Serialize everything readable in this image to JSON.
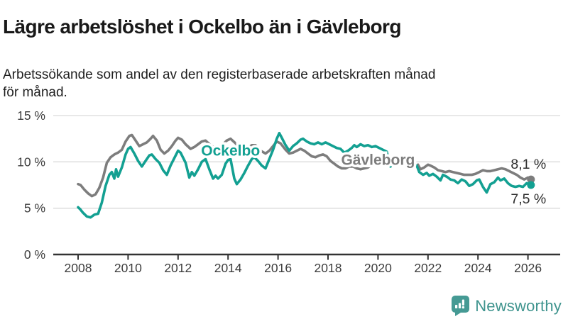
{
  "header": {
    "title": "Lägre arbetslöshet i Ockelbo än i Gävleborg",
    "subtitle": "Arbetssökande som andel av den registerbaserade arbetskraften månad\nför månad."
  },
  "footer": {
    "brand": "Newsworthy",
    "brand_color": "#3f948e",
    "logo_icon": "bar-chart-speech-bubble",
    "logo_icon_color": "#459a94"
  },
  "chart_data": {
    "type": "line",
    "title": "Lägre arbetslöshet i Ockelbo än i Gävleborg",
    "subtitle": "Arbetssökande som andel av den registerbaserade arbetskraften månad för månad.",
    "xlabel": "",
    "ylabel": "",
    "y_unit": "percent",
    "x_unit": "year, monthly points",
    "ylim": [
      0,
      15
    ],
    "xlim": [
      2007.9,
      2026.9
    ],
    "grid": "horizontal",
    "gridline_color": "#dadada",
    "axis_color": "#333333",
    "tick_label_color": "#3d3d3d",
    "data_gap_note": "no data plotted between mid-2020 and mid-2021",
    "y_ticks": [
      {
        "value": 0,
        "label": "0 %"
      },
      {
        "value": 5,
        "label": "5 %"
      },
      {
        "value": 10,
        "label": "10 %"
      },
      {
        "value": 15,
        "label": "15 %"
      }
    ],
    "x_ticks": [
      {
        "value": 2008,
        "label": "2008"
      },
      {
        "value": 2010,
        "label": "2010"
      },
      {
        "value": 2012,
        "label": "2012"
      },
      {
        "value": 2014,
        "label": "2014"
      },
      {
        "value": 2016,
        "label": "2016"
      },
      {
        "value": 2018,
        "label": "2018"
      },
      {
        "value": 2020,
        "label": "2020"
      },
      {
        "value": 2022,
        "label": "2022"
      },
      {
        "value": 2024,
        "label": "2024"
      },
      {
        "value": 2026,
        "label": "2026"
      }
    ],
    "series": [
      {
        "name": "Gävleborg",
        "color": "#7d7d7d",
        "end_value_label": "8,1 %",
        "end_value": 8.1,
        "segments": [
          [
            [
              2008.0,
              7.6
            ],
            [
              2008.1,
              7.5
            ],
            [
              2008.25,
              7.0
            ],
            [
              2008.4,
              6.6
            ],
            [
              2008.55,
              6.3
            ],
            [
              2008.7,
              6.5
            ],
            [
              2008.85,
              7.2
            ],
            [
              2009.0,
              8.3
            ],
            [
              2009.15,
              9.9
            ],
            [
              2009.3,
              10.5
            ],
            [
              2009.45,
              10.8
            ],
            [
              2009.6,
              11.0
            ],
            [
              2009.75,
              11.3
            ],
            [
              2009.9,
              12.2
            ],
            [
              2010.05,
              12.8
            ],
            [
              2010.15,
              12.9
            ],
            [
              2010.3,
              12.3
            ],
            [
              2010.45,
              11.7
            ],
            [
              2010.6,
              11.9
            ],
            [
              2010.75,
              12.1
            ],
            [
              2010.9,
              12.5
            ],
            [
              2011.0,
              12.8
            ],
            [
              2011.15,
              12.3
            ],
            [
              2011.3,
              11.3
            ],
            [
              2011.45,
              10.9
            ],
            [
              2011.6,
              11.2
            ],
            [
              2011.75,
              11.7
            ],
            [
              2011.9,
              12.3
            ],
            [
              2012.0,
              12.6
            ],
            [
              2012.15,
              12.4
            ],
            [
              2012.3,
              11.9
            ],
            [
              2012.5,
              11.4
            ],
            [
              2012.65,
              11.6
            ],
            [
              2012.8,
              11.9
            ],
            [
              2012.95,
              12.2
            ],
            [
              2013.1,
              12.3
            ],
            [
              2013.3,
              11.8
            ],
            [
              2013.5,
              11.4
            ],
            [
              2013.65,
              11.6
            ],
            [
              2013.8,
              11.9
            ],
            [
              2013.95,
              12.3
            ],
            [
              2014.1,
              12.5
            ],
            [
              2014.3,
              12.0
            ],
            [
              2014.5,
              11.4
            ],
            [
              2014.65,
              11.2
            ],
            [
              2014.8,
              11.5
            ],
            [
              2014.95,
              11.8
            ],
            [
              2015.1,
              11.8
            ],
            [
              2015.3,
              11.2
            ],
            [
              2015.5,
              10.9
            ],
            [
              2015.65,
              11.2
            ],
            [
              2015.8,
              11.7
            ],
            [
              2015.95,
              12.2
            ],
            [
              2016.1,
              12.0
            ],
            [
              2016.3,
              11.3
            ],
            [
              2016.45,
              10.9
            ],
            [
              2016.6,
              11.0
            ],
            [
              2016.75,
              11.2
            ],
            [
              2016.9,
              11.4
            ],
            [
              2017.05,
              11.2
            ],
            [
              2017.2,
              10.9
            ],
            [
              2017.35,
              10.6
            ],
            [
              2017.5,
              10.5
            ],
            [
              2017.65,
              10.7
            ],
            [
              2017.8,
              10.8
            ],
            [
              2017.95,
              10.6
            ],
            [
              2018.1,
              10.1
            ],
            [
              2018.25,
              9.8
            ],
            [
              2018.4,
              9.5
            ],
            [
              2018.55,
              9.3
            ],
            [
              2018.7,
              9.3
            ],
            [
              2018.85,
              9.5
            ],
            [
              2019.0,
              9.5
            ],
            [
              2019.15,
              9.3
            ],
            [
              2019.3,
              9.2
            ],
            [
              2019.45,
              9.3
            ],
            [
              2019.6,
              9.4
            ],
            [
              2019.75,
              9.7
            ],
            [
              2019.9,
              9.8
            ],
            [
              2020.05,
              9.8
            ],
            [
              2020.2,
              10.0
            ],
            [
              2020.45,
              10.3
            ]
          ],
          [
            [
              2021.6,
              9.7
            ],
            [
              2021.7,
              9.2
            ],
            [
              2021.85,
              9.4
            ],
            [
              2022.0,
              9.7
            ],
            [
              2022.1,
              9.6
            ],
            [
              2022.25,
              9.4
            ],
            [
              2022.4,
              9.1
            ],
            [
              2022.55,
              9.0
            ],
            [
              2022.7,
              8.9
            ],
            [
              2022.85,
              9.0
            ],
            [
              2023.0,
              8.9
            ],
            [
              2023.15,
              8.8
            ],
            [
              2023.3,
              8.7
            ],
            [
              2023.45,
              8.6
            ],
            [
              2023.6,
              8.6
            ],
            [
              2023.75,
              8.6
            ],
            [
              2023.9,
              8.7
            ],
            [
              2024.05,
              8.9
            ],
            [
              2024.2,
              9.1
            ],
            [
              2024.35,
              9.0
            ],
            [
              2024.5,
              9.0
            ],
            [
              2024.65,
              9.1
            ],
            [
              2024.8,
              9.2
            ],
            [
              2024.95,
              9.3
            ],
            [
              2025.1,
              9.2
            ],
            [
              2025.25,
              9.0
            ],
            [
              2025.4,
              8.8
            ],
            [
              2025.55,
              8.6
            ],
            [
              2025.7,
              8.3
            ],
            [
              2025.85,
              8.1
            ],
            [
              2026.0,
              8.3
            ],
            [
              2026.12,
              8.1
            ]
          ]
        ]
      },
      {
        "name": "Ockelbo",
        "color": "#13a092",
        "end_value_label": "7,5 %",
        "end_value": 7.5,
        "segments": [
          [
            [
              2008.0,
              5.1
            ],
            [
              2008.08,
              4.9
            ],
            [
              2008.2,
              4.5
            ],
            [
              2008.35,
              4.1
            ],
            [
              2008.5,
              4.0
            ],
            [
              2008.65,
              4.3
            ],
            [
              2008.8,
              4.4
            ],
            [
              2008.95,
              5.6
            ],
            [
              2009.1,
              7.4
            ],
            [
              2009.25,
              8.6
            ],
            [
              2009.35,
              8.9
            ],
            [
              2009.45,
              8.2
            ],
            [
              2009.52,
              9.2
            ],
            [
              2009.6,
              8.4
            ],
            [
              2009.75,
              9.4
            ],
            [
              2009.9,
              10.8
            ],
            [
              2010.0,
              11.4
            ],
            [
              2010.1,
              11.6
            ],
            [
              2010.25,
              10.9
            ],
            [
              2010.4,
              10.1
            ],
            [
              2010.55,
              9.5
            ],
            [
              2010.7,
              10.1
            ],
            [
              2010.85,
              10.7
            ],
            [
              2010.95,
              10.8
            ],
            [
              2011.1,
              10.3
            ],
            [
              2011.25,
              9.9
            ],
            [
              2011.4,
              9.1
            ],
            [
              2011.55,
              8.6
            ],
            [
              2011.7,
              9.6
            ],
            [
              2011.85,
              10.4
            ],
            [
              2012.0,
              11.2
            ],
            [
              2012.1,
              11.0
            ],
            [
              2012.3,
              9.9
            ],
            [
              2012.45,
              8.3
            ],
            [
              2012.55,
              8.9
            ],
            [
              2012.65,
              8.5
            ],
            [
              2012.8,
              9.2
            ],
            [
              2012.95,
              10.0
            ],
            [
              2013.1,
              10.3
            ],
            [
              2013.25,
              9.2
            ],
            [
              2013.4,
              8.2
            ],
            [
              2013.5,
              8.5
            ],
            [
              2013.6,
              8.2
            ],
            [
              2013.75,
              8.6
            ],
            [
              2013.9,
              9.8
            ],
            [
              2014.0,
              10.2
            ],
            [
              2014.1,
              10.3
            ],
            [
              2014.25,
              8.2
            ],
            [
              2014.35,
              7.6
            ],
            [
              2014.5,
              8.1
            ],
            [
              2014.65,
              8.8
            ],
            [
              2014.8,
              9.6
            ],
            [
              2014.95,
              10.3
            ],
            [
              2015.05,
              10.5
            ],
            [
              2015.2,
              10.1
            ],
            [
              2015.35,
              9.6
            ],
            [
              2015.5,
              9.3
            ],
            [
              2015.65,
              10.3
            ],
            [
              2015.8,
              11.3
            ],
            [
              2015.95,
              12.5
            ],
            [
              2016.05,
              13.1
            ],
            [
              2016.15,
              12.6
            ],
            [
              2016.3,
              11.8
            ],
            [
              2016.45,
              11.2
            ],
            [
              2016.6,
              11.7
            ],
            [
              2016.75,
              12.0
            ],
            [
              2016.9,
              12.4
            ],
            [
              2017.0,
              12.5
            ],
            [
              2017.15,
              12.2
            ],
            [
              2017.3,
              12.0
            ],
            [
              2017.45,
              11.9
            ],
            [
              2017.6,
              12.1
            ],
            [
              2017.75,
              11.9
            ],
            [
              2017.9,
              12.1
            ],
            [
              2018.05,
              11.9
            ],
            [
              2018.2,
              11.7
            ],
            [
              2018.35,
              11.5
            ],
            [
              2018.5,
              11.4
            ],
            [
              2018.65,
              11.0
            ],
            [
              2018.8,
              11.2
            ],
            [
              2018.95,
              11.5
            ],
            [
              2019.05,
              11.8
            ],
            [
              2019.15,
              11.6
            ],
            [
              2019.3,
              11.9
            ],
            [
              2019.45,
              11.7
            ],
            [
              2019.6,
              11.8
            ],
            [
              2019.75,
              11.6
            ],
            [
              2019.9,
              11.7
            ],
            [
              2020.05,
              11.5
            ],
            [
              2020.2,
              11.3
            ],
            [
              2020.35,
              11.1
            ],
            [
              2020.5,
              9.5
            ]
          ],
          [
            [
              2021.55,
              9.6
            ],
            [
              2021.65,
              8.9
            ],
            [
              2021.8,
              8.6
            ],
            [
              2021.95,
              8.8
            ],
            [
              2022.05,
              8.5
            ],
            [
              2022.2,
              8.7
            ],
            [
              2022.35,
              8.4
            ],
            [
              2022.5,
              8.0
            ],
            [
              2022.6,
              8.6
            ],
            [
              2022.75,
              8.4
            ],
            [
              2022.9,
              8.1
            ],
            [
              2023.05,
              8.0
            ],
            [
              2023.2,
              7.7
            ],
            [
              2023.35,
              8.1
            ],
            [
              2023.5,
              7.9
            ],
            [
              2023.65,
              7.4
            ],
            [
              2023.8,
              7.6
            ],
            [
              2023.95,
              8.0
            ],
            [
              2024.05,
              8.1
            ],
            [
              2024.2,
              7.3
            ],
            [
              2024.35,
              6.7
            ],
            [
              2024.5,
              7.6
            ],
            [
              2024.65,
              7.8
            ],
            [
              2024.8,
              8.3
            ],
            [
              2024.9,
              8.0
            ],
            [
              2025.05,
              8.2
            ],
            [
              2025.2,
              7.7
            ],
            [
              2025.35,
              7.4
            ],
            [
              2025.5,
              7.3
            ],
            [
              2025.65,
              7.4
            ],
            [
              2025.8,
              7.3
            ],
            [
              2025.95,
              7.7
            ],
            [
              2026.12,
              7.5
            ]
          ]
        ]
      }
    ],
    "annotations": [
      {
        "kind": "series-label",
        "text": "Ockelbo",
        "color": "#13a092",
        "x": 2014.1,
        "y": 11.2,
        "bold": true,
        "halo": true
      },
      {
        "kind": "series-label",
        "text": "Gävleborg",
        "color": "#7d7d7d",
        "x": 2020.0,
        "y": 10.2,
        "bold": true,
        "halo": true
      },
      {
        "kind": "value-label",
        "text": "8,1 %",
        "color": "#2e2e2e",
        "x": 2026.02,
        "y": 9.8,
        "bold": false,
        "halo": false
      },
      {
        "kind": "value-label",
        "text": "7,5 %",
        "color": "#2e2e2e",
        "x": 2026.02,
        "y": 6.05,
        "bold": false,
        "halo": false
      }
    ],
    "legend": "inline series labels, no legend box"
  }
}
